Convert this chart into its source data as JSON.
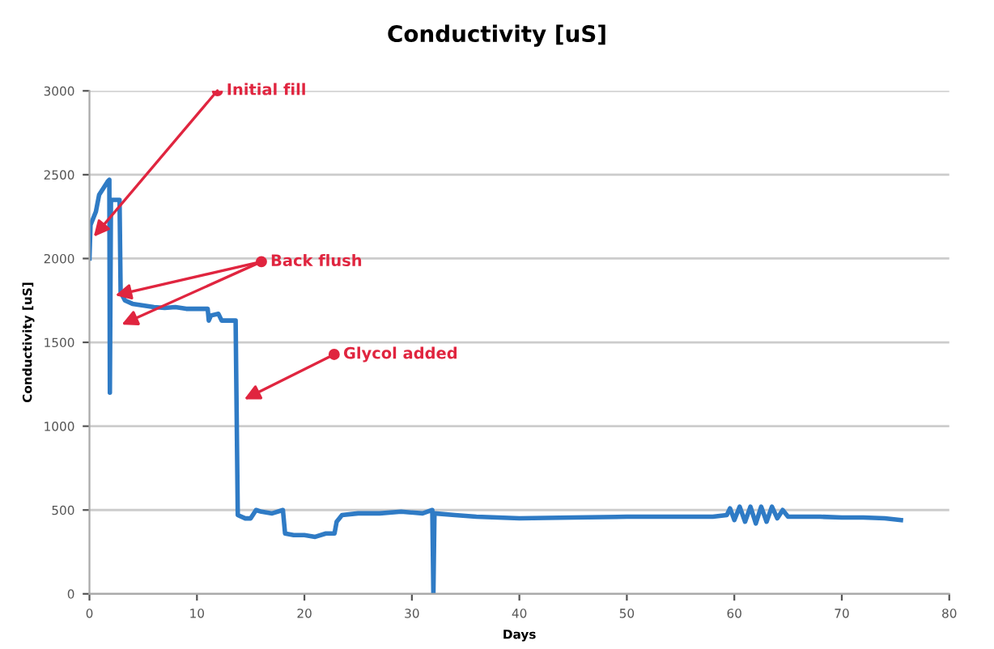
{
  "chart_data": {
    "type": "line",
    "title": "Conductivity [uS]",
    "xlabel": "Days",
    "ylabel": "Conductivity [uS]",
    "xlim": [
      0,
      80
    ],
    "xticks": [
      0,
      10,
      20,
      30,
      40,
      50,
      60,
      70,
      80
    ],
    "ylim": [
      0,
      3000
    ],
    "yticks": [
      0,
      500,
      1000,
      1500,
      2000,
      2500,
      3000
    ],
    "grid": "y",
    "legend": false,
    "marker": "none",
    "line_style": "solid",
    "series": [
      {
        "color": "#2f7bc5",
        "x": [
          0,
          0.1,
          0.6,
          0.9,
          1.3,
          1.7,
          1.85,
          1.9,
          2.0,
          2.8,
          2.9,
          3.3,
          4,
          5,
          6,
          7,
          8,
          9,
          10,
          11,
          11.1,
          11.3,
          12,
          12.3,
          13.6,
          13.8,
          14.5,
          15,
          15.5,
          16,
          17,
          18,
          18.2,
          19,
          20,
          21,
          22,
          22.8,
          23,
          23.5,
          25,
          27,
          29,
          31,
          31.9,
          32,
          32.1,
          34,
          36,
          40,
          45,
          50,
          55,
          58,
          59.3,
          59.6,
          60,
          60.5,
          61,
          61.5,
          62,
          62.5,
          63,
          63.5,
          64,
          64.5,
          65,
          68,
          70,
          72,
          74,
          75.5
        ],
        "values": [
          2000,
          2200,
          2280,
          2380,
          2420,
          2460,
          2470,
          1200,
          2350,
          2350,
          1800,
          1750,
          1730,
          1720,
          1710,
          1705,
          1710,
          1700,
          1700,
          1700,
          1630,
          1660,
          1670,
          1630,
          1630,
          470,
          450,
          450,
          500,
          490,
          480,
          500,
          360,
          350,
          350,
          340,
          360,
          360,
          430,
          470,
          480,
          480,
          490,
          480,
          500,
          0,
          480,
          470,
          460,
          450,
          455,
          460,
          460,
          460,
          470,
          510,
          440,
          520,
          430,
          520,
          420,
          520,
          430,
          520,
          450,
          500,
          460,
          460,
          455,
          455,
          450,
          440
        ]
      }
    ],
    "annotations": [
      {
        "text": "Initial fill",
        "x": 0.4,
        "y": 2130
      },
      {
        "text": "Back flush",
        "x": 2.4,
        "y": 1780
      },
      {
        "text": "Glycol added",
        "x": 14.4,
        "y": 1160
      }
    ]
  }
}
